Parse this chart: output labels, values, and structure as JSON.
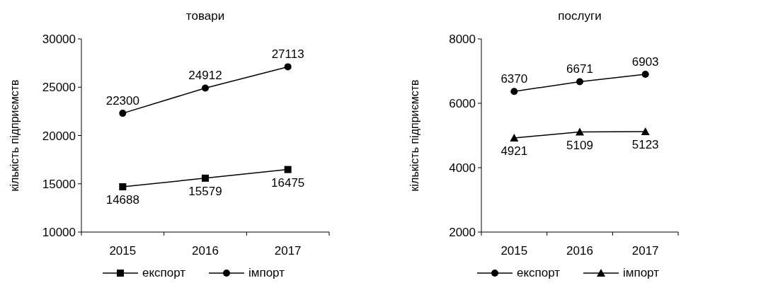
{
  "chart_data": [
    {
      "type": "line",
      "title": "товари",
      "ylabel": "кількість підприємств",
      "categories": [
        "2015",
        "2016",
        "2017"
      ],
      "ylim": [
        10000,
        30000
      ],
      "yticks": [
        10000,
        15000,
        20000,
        25000,
        30000
      ],
      "grid": false,
      "legend": "bottom",
      "data_labels": true,
      "line_style": "solid",
      "series": [
        {
          "name": "експорт",
          "color": "#000000",
          "marker": "square",
          "values": [
            14688,
            15579,
            16475
          ]
        },
        {
          "name": "імпорт",
          "color": "#000000",
          "marker": "circle",
          "values": [
            22300,
            24912,
            27113
          ]
        }
      ]
    },
    {
      "type": "line",
      "title": "послуги",
      "ylabel": "кількість підприємств",
      "categories": [
        "2015",
        "2016",
        "2017"
      ],
      "ylim": [
        2000,
        8000
      ],
      "yticks": [
        2000,
        4000,
        6000,
        8000
      ],
      "grid": false,
      "legend": "bottom",
      "data_labels": true,
      "line_style": "solid",
      "series": [
        {
          "name": "експорт",
          "color": "#000000",
          "marker": "circle",
          "values": [
            6370,
            6671,
            6903
          ]
        },
        {
          "name": "імпорт",
          "color": "#000000",
          "marker": "triangle",
          "values": [
            4921,
            5109,
            5123
          ]
        }
      ]
    }
  ]
}
